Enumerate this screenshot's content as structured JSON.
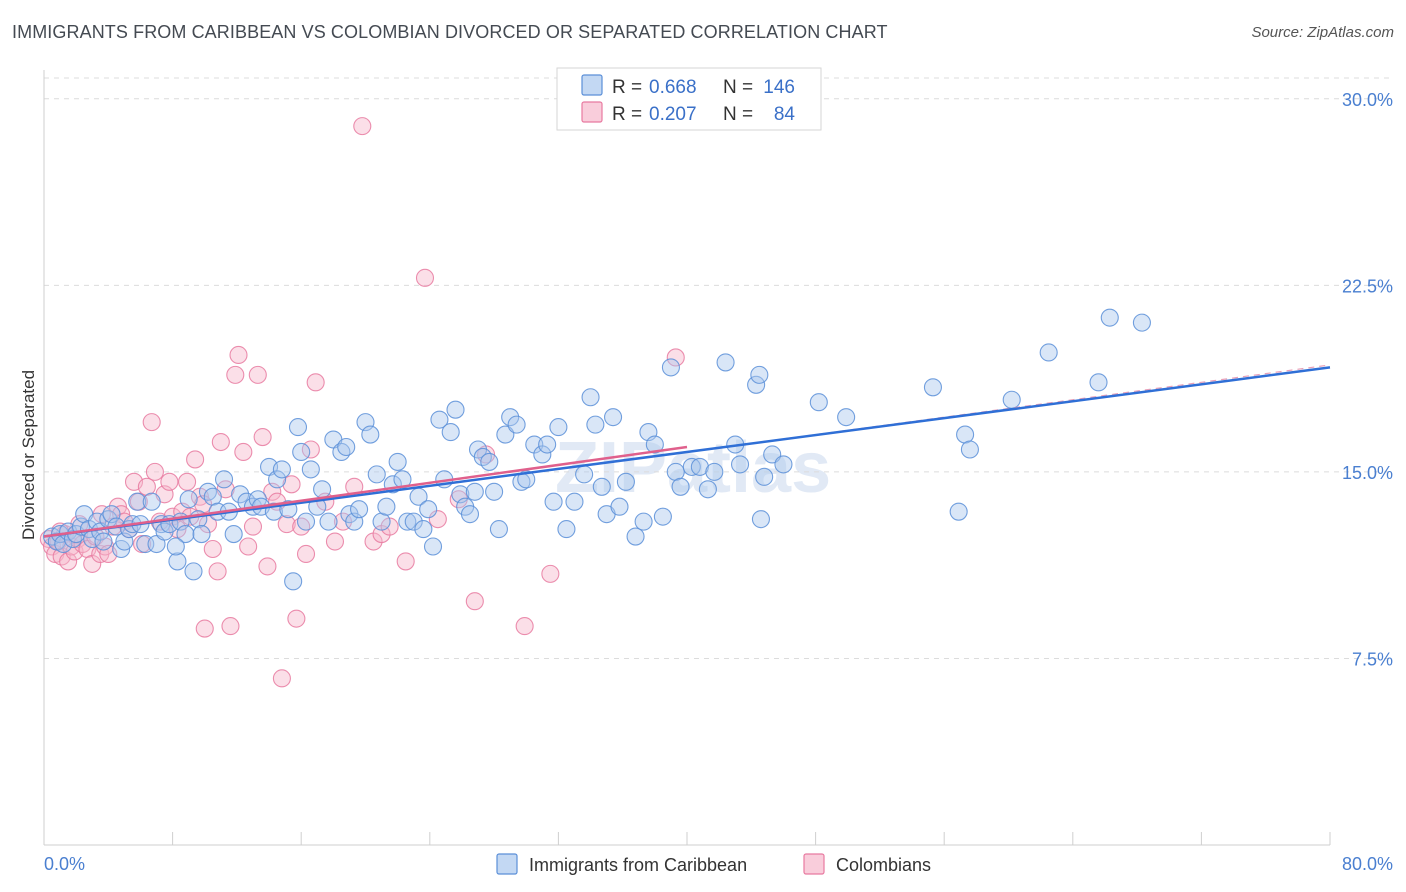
{
  "title": "IMMIGRANTS FROM CARIBBEAN VS COLOMBIAN DIVORCED OR SEPARATED CORRELATION CHART",
  "source": "Source: ZipAtlas.com",
  "watermark": "ZIPatlas",
  "colors": {
    "blue_fill": "#aac8ee",
    "blue_stroke": "#5b8fd8",
    "blue_line": "#2f6fd6",
    "pink_fill": "#f6b8cc",
    "pink_stroke": "#e87aa0",
    "pink_line": "#e0608c"
  },
  "legend": {
    "rows": [
      {
        "r_label": "R =",
        "r_value": "0.668",
        "n_label": "N =",
        "n_value": "146"
      },
      {
        "r_label": "R =",
        "r_value": "0.207",
        "n_label": "N =",
        "n_value": "84"
      }
    ]
  },
  "bottom_legend": [
    "Immigrants from Caribbean",
    "Colombians"
  ],
  "chart_data": {
    "type": "scatter",
    "title": "IMMIGRANTS FROM CARIBBEAN VS COLOMBIAN DIVORCED OR SEPARATED CORRELATION CHART",
    "xlabel": "",
    "ylabel": "Divorced or Separated",
    "xlim": [
      0,
      80
    ],
    "ylim": [
      0,
      32
    ],
    "x_tick_labels": [
      "0.0%",
      "80.0%"
    ],
    "y_ticks": [
      7.5,
      15.0,
      22.5,
      30.0
    ],
    "y_tick_labels": [
      "7.5%",
      "15.0%",
      "22.5%",
      "30.0%"
    ],
    "grid": true,
    "series": [
      {
        "name": "Immigrants from Caribbean",
        "R": 0.668,
        "N": 146,
        "trend": {
          "x": [
            0,
            80
          ],
          "y": [
            12.4,
            19.2
          ],
          "extended_to": [
            80,
            19.3
          ]
        },
        "points": [
          [
            0.5,
            12.4
          ],
          [
            0.8,
            12.2
          ],
          [
            1.0,
            12.5
          ],
          [
            1.2,
            12.1
          ],
          [
            1.5,
            12.6
          ],
          [
            1.8,
            12.3
          ],
          [
            2.0,
            12.5
          ],
          [
            2.3,
            12.8
          ],
          [
            2.5,
            13.3
          ],
          [
            2.8,
            12.7
          ],
          [
            3.0,
            12.3
          ],
          [
            3.3,
            13.0
          ],
          [
            3.5,
            12.6
          ],
          [
            3.7,
            12.2
          ],
          [
            4.0,
            13.1
          ],
          [
            4.2,
            13.3
          ],
          [
            4.5,
            12.8
          ],
          [
            4.8,
            11.9
          ],
          [
            5.0,
            12.2
          ],
          [
            5.3,
            12.7
          ],
          [
            5.5,
            12.9
          ],
          [
            5.8,
            13.8
          ],
          [
            6.0,
            12.9
          ],
          [
            6.3,
            12.1
          ],
          [
            6.7,
            13.8
          ],
          [
            7.0,
            12.1
          ],
          [
            7.3,
            12.9
          ],
          [
            7.5,
            12.6
          ],
          [
            7.8,
            12.9
          ],
          [
            8.3,
            11.4
          ],
          [
            8.5,
            13.0
          ],
          [
            8.8,
            12.5
          ],
          [
            9.0,
            13.9
          ],
          [
            9.3,
            11.0
          ],
          [
            9.6,
            13.1
          ],
          [
            9.8,
            12.5
          ],
          [
            10.2,
            14.2
          ],
          [
            10.5,
            14.0
          ],
          [
            10.8,
            13.4
          ],
          [
            11.2,
            14.7
          ],
          [
            11.5,
            13.4
          ],
          [
            11.8,
            12.5
          ],
          [
            12.2,
            14.1
          ],
          [
            12.6,
            13.8
          ],
          [
            13.0,
            13.6
          ],
          [
            13.3,
            13.9
          ],
          [
            13.5,
            13.6
          ],
          [
            14.0,
            15.2
          ],
          [
            14.3,
            13.4
          ],
          [
            14.5,
            14.7
          ],
          [
            14.8,
            15.1
          ],
          [
            15.2,
            13.5
          ],
          [
            15.5,
            10.6
          ],
          [
            15.8,
            16.8
          ],
          [
            16.0,
            15.8
          ],
          [
            16.3,
            13.0
          ],
          [
            16.6,
            15.1
          ],
          [
            17.0,
            13.6
          ],
          [
            17.3,
            14.3
          ],
          [
            17.7,
            13.0
          ],
          [
            18.0,
            16.3
          ],
          [
            18.5,
            15.8
          ],
          [
            18.8,
            16.0
          ],
          [
            19.0,
            13.3
          ],
          [
            19.3,
            13.0
          ],
          [
            19.6,
            13.5
          ],
          [
            20.0,
            17.0
          ],
          [
            20.3,
            16.5
          ],
          [
            20.7,
            14.9
          ],
          [
            21.0,
            13.0
          ],
          [
            21.3,
            13.6
          ],
          [
            21.7,
            14.5
          ],
          [
            22.0,
            15.4
          ],
          [
            22.3,
            14.7
          ],
          [
            22.6,
            13.0
          ],
          [
            23.0,
            13.0
          ],
          [
            23.3,
            14.0
          ],
          [
            23.6,
            12.7
          ],
          [
            23.9,
            13.5
          ],
          [
            24.2,
            12.0
          ],
          [
            24.6,
            17.1
          ],
          [
            24.9,
            14.7
          ],
          [
            25.3,
            16.6
          ],
          [
            25.6,
            17.5
          ],
          [
            25.9,
            14.1
          ],
          [
            26.2,
            13.6
          ],
          [
            26.5,
            13.3
          ],
          [
            27.0,
            15.9
          ],
          [
            27.3,
            15.6
          ],
          [
            27.7,
            15.4
          ],
          [
            28.0,
            14.2
          ],
          [
            28.3,
            12.7
          ],
          [
            28.7,
            16.5
          ],
          [
            29.0,
            17.2
          ],
          [
            29.4,
            16.9
          ],
          [
            29.7,
            14.6
          ],
          [
            30.0,
            14.7
          ],
          [
            30.5,
            16.1
          ],
          [
            31.0,
            15.7
          ],
          [
            31.3,
            16.1
          ],
          [
            31.7,
            13.8
          ],
          [
            32.0,
            16.8
          ],
          [
            32.5,
            12.7
          ],
          [
            33.0,
            13.8
          ],
          [
            33.6,
            14.9
          ],
          [
            34.0,
            18.0
          ],
          [
            34.3,
            16.9
          ],
          [
            34.7,
            14.4
          ],
          [
            35.0,
            13.3
          ],
          [
            35.4,
            17.2
          ],
          [
            35.8,
            13.6
          ],
          [
            36.2,
            14.6
          ],
          [
            36.8,
            12.4
          ],
          [
            37.3,
            13.0
          ],
          [
            37.6,
            16.6
          ],
          [
            38.0,
            16.1
          ],
          [
            38.5,
            13.2
          ],
          [
            39.0,
            19.2
          ],
          [
            39.3,
            15.0
          ],
          [
            39.6,
            14.4
          ],
          [
            40.3,
            15.2
          ],
          [
            40.8,
            15.2
          ],
          [
            41.3,
            14.3
          ],
          [
            42.4,
            19.4
          ],
          [
            43.0,
            16.1
          ],
          [
            43.3,
            15.3
          ],
          [
            44.3,
            18.5
          ],
          [
            44.5,
            18.9
          ],
          [
            44.8,
            14.8
          ],
          [
            45.3,
            15.7
          ],
          [
            46.0,
            15.3
          ],
          [
            48.2,
            17.8
          ],
          [
            49.9,
            17.2
          ],
          [
            55.3,
            18.4
          ],
          [
            56.9,
            13.4
          ],
          [
            57.3,
            16.5
          ],
          [
            57.6,
            15.9
          ],
          [
            60.2,
            17.9
          ],
          [
            62.5,
            19.8
          ],
          [
            65.6,
            18.6
          ],
          [
            66.3,
            21.2
          ],
          [
            68.3,
            21.0
          ],
          [
            44.6,
            13.1
          ],
          [
            41.7,
            15.0
          ],
          [
            26.8,
            14.2
          ],
          [
            8.2,
            12.0
          ]
        ]
      },
      {
        "name": "Colombians",
        "R": 0.207,
        "N": 84,
        "trend": {
          "x": [
            0,
            40
          ],
          "y": [
            12.4,
            16.0
          ]
        },
        "points": [
          [
            0.3,
            12.3
          ],
          [
            0.5,
            12.0
          ],
          [
            0.7,
            11.7
          ],
          [
            0.9,
            12.2
          ],
          [
            1.1,
            11.6
          ],
          [
            1.3,
            12.5
          ],
          [
            1.5,
            11.4
          ],
          [
            1.7,
            12.0
          ],
          [
            1.9,
            11.8
          ],
          [
            2.1,
            12.3
          ],
          [
            2.4,
            12.1
          ],
          [
            2.7,
            11.9
          ],
          [
            3.0,
            11.3
          ],
          [
            3.2,
            12.4
          ],
          [
            3.5,
            11.7
          ],
          [
            3.8,
            12.0
          ],
          [
            4.0,
            11.7
          ],
          [
            4.3,
            12.8
          ],
          [
            4.6,
            13.6
          ],
          [
            4.8,
            13.3
          ],
          [
            5.0,
            13.0
          ],
          [
            5.3,
            12.7
          ],
          [
            5.6,
            14.6
          ],
          [
            5.9,
            13.8
          ],
          [
            6.1,
            12.1
          ],
          [
            6.4,
            14.4
          ],
          [
            6.7,
            17.0
          ],
          [
            6.9,
            15.0
          ],
          [
            7.2,
            13.0
          ],
          [
            7.5,
            14.1
          ],
          [
            7.8,
            14.6
          ],
          [
            8.0,
            13.2
          ],
          [
            8.3,
            12.7
          ],
          [
            8.6,
            13.4
          ],
          [
            8.9,
            14.6
          ],
          [
            9.1,
            13.2
          ],
          [
            9.4,
            15.5
          ],
          [
            9.7,
            14.0
          ],
          [
            10.0,
            8.7
          ],
          [
            10.2,
            12.9
          ],
          [
            10.5,
            11.9
          ],
          [
            10.8,
            11.0
          ],
          [
            11.0,
            16.2
          ],
          [
            11.3,
            14.3
          ],
          [
            11.6,
            8.8
          ],
          [
            11.9,
            18.9
          ],
          [
            12.1,
            19.7
          ],
          [
            12.4,
            15.8
          ],
          [
            12.7,
            12.0
          ],
          [
            13.0,
            12.8
          ],
          [
            13.3,
            18.9
          ],
          [
            13.6,
            16.4
          ],
          [
            13.9,
            11.2
          ],
          [
            14.2,
            14.2
          ],
          [
            14.5,
            13.8
          ],
          [
            14.8,
            6.7
          ],
          [
            15.1,
            12.9
          ],
          [
            15.4,
            14.5
          ],
          [
            15.7,
            9.1
          ],
          [
            16.0,
            12.8
          ],
          [
            16.3,
            11.7
          ],
          [
            16.6,
            15.9
          ],
          [
            16.9,
            18.6
          ],
          [
            17.5,
            13.8
          ],
          [
            18.1,
            12.2
          ],
          [
            18.6,
            13.0
          ],
          [
            19.3,
            14.4
          ],
          [
            19.8,
            28.9
          ],
          [
            20.5,
            12.2
          ],
          [
            21.0,
            12.5
          ],
          [
            21.5,
            12.8
          ],
          [
            22.5,
            11.4
          ],
          [
            23.7,
            22.8
          ],
          [
            24.5,
            13.1
          ],
          [
            25.8,
            13.9
          ],
          [
            26.8,
            9.8
          ],
          [
            27.5,
            15.7
          ],
          [
            29.9,
            8.8
          ],
          [
            31.5,
            10.9
          ],
          [
            39.3,
            19.6
          ],
          [
            1.0,
            12.6
          ],
          [
            2.2,
            12.9
          ],
          [
            3.6,
            13.3
          ],
          [
            9.9,
            13.7
          ]
        ]
      }
    ]
  }
}
